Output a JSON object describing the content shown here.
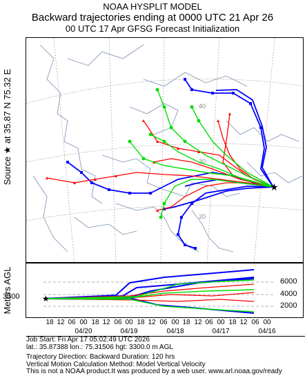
{
  "header": {
    "model": "NOAA HYSPLIT MODEL",
    "title": "Backward trajectories ending at 0000 UTC 21 Apr 26",
    "subtitle": "00 UTC 17 Apr    GFSG  Forecast Initialization"
  },
  "map": {
    "source_label": "Source ★  at   35.87 N   75.32 E",
    "grid_labels": [
      "40",
      "30",
      "20"
    ],
    "colors": {
      "red": "#ff0000",
      "blue": "#0000ff",
      "green": "#00dd00",
      "coast": "#7a8fb3",
      "grid": "#a0a0a0"
    }
  },
  "height_panel": {
    "ylabel": "Meters AGL",
    "start_height": "3300",
    "yticks": [
      "6000",
      "4000",
      "2000"
    ],
    "time_ticks": [
      "18",
      "12",
      "06",
      "00",
      "18",
      "12",
      "06",
      "00",
      "18",
      "12",
      "06",
      "00",
      "18",
      "12",
      "06",
      "00",
      "18",
      "12",
      "06",
      "00"
    ],
    "dates": [
      "04/20",
      "04/19",
      "04/18",
      "04/17",
      "04/16"
    ]
  },
  "info": {
    "job_start": "Job Start: Fri Apr 17 05:02:49 UTC 2026",
    "location": "lat.: 35.87388   lon.: 75.31506    hgt: 3300.0 m AGL",
    "direction": "Trajectory Direction: Backward        Duration: 120 hrs",
    "vertical": "Vertical Motion Calculation Method: Model Vertical Velocity",
    "disclaimer": "This is not a NOAA product.It was produced by a web user. www.arl.noaa.gov/ready"
  }
}
